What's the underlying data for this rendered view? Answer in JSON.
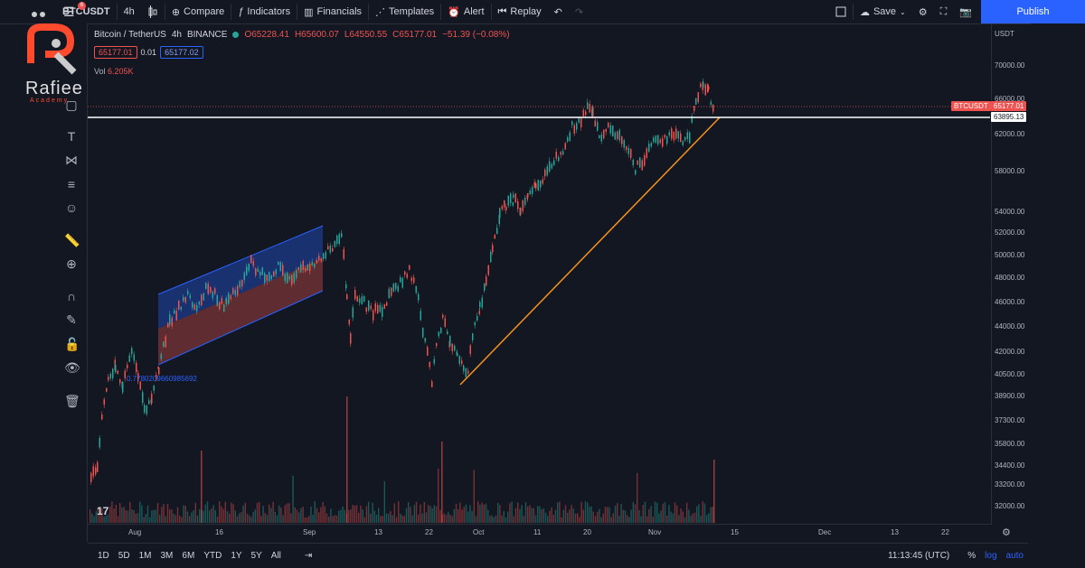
{
  "toolbar": {
    "symbol": "BTCUSDT",
    "interval": "4h",
    "compare": "Compare",
    "indicators": "Indicators",
    "financials": "Financials",
    "templates": "Templates",
    "alert": "Alert",
    "replay": "Replay",
    "save": "Save",
    "publish": "Publish",
    "notification_count": "6"
  },
  "logo": {
    "name": "Rafiee",
    "subtitle": "Academy"
  },
  "legend": {
    "pair": "Bitcoin / TetherUS",
    "interval": "4h",
    "exchange": "BINANCE",
    "open": "O65228.41",
    "high": "H65600.07",
    "low": "L64550.55",
    "close": "C65177.01",
    "change": "−51.39 (−0.08%)",
    "bid": "65177.01",
    "spread": "0.01",
    "ask": "65177.02",
    "volume_label": "Vol",
    "volume_value": "6.205K"
  },
  "price_scale": {
    "currency": "USDT",
    "ticks": [
      "70000.00",
      "66000.00",
      "62000.00",
      "58000.00",
      "54000.00",
      "52000.00",
      "50000.00",
      "48000.00",
      "46000.00",
      "44000.00",
      "42000.00",
      "40500.00",
      "38900.00",
      "37300.00",
      "35800.00",
      "34400.00",
      "33200.00",
      "32000.00"
    ],
    "last_price_label": "BTCUSDT",
    "last_price": "65177.01",
    "horizontal_line_price": "63895.13"
  },
  "time_axis": {
    "ticks": [
      "Aug",
      "16",
      "Sep",
      "13",
      "22",
      "Oct",
      "11",
      "20",
      "Nov",
      "15",
      "Dec",
      "13",
      "22"
    ]
  },
  "annotation": {
    "channel_label": "0.7780209660985692"
  },
  "bottom_bar": {
    "ranges": [
      "1D",
      "5D",
      "1M",
      "3M",
      "6M",
      "YTD",
      "1Y",
      "5Y",
      "All"
    ],
    "clock": "11:13:45 (UTC)",
    "percent": "%",
    "log": "log",
    "auto": "auto"
  },
  "colors": {
    "up": "#26a69a",
    "down": "#ef5350",
    "accent": "#2962ff",
    "trendline": "#f7931a",
    "background": "#131722"
  }
}
